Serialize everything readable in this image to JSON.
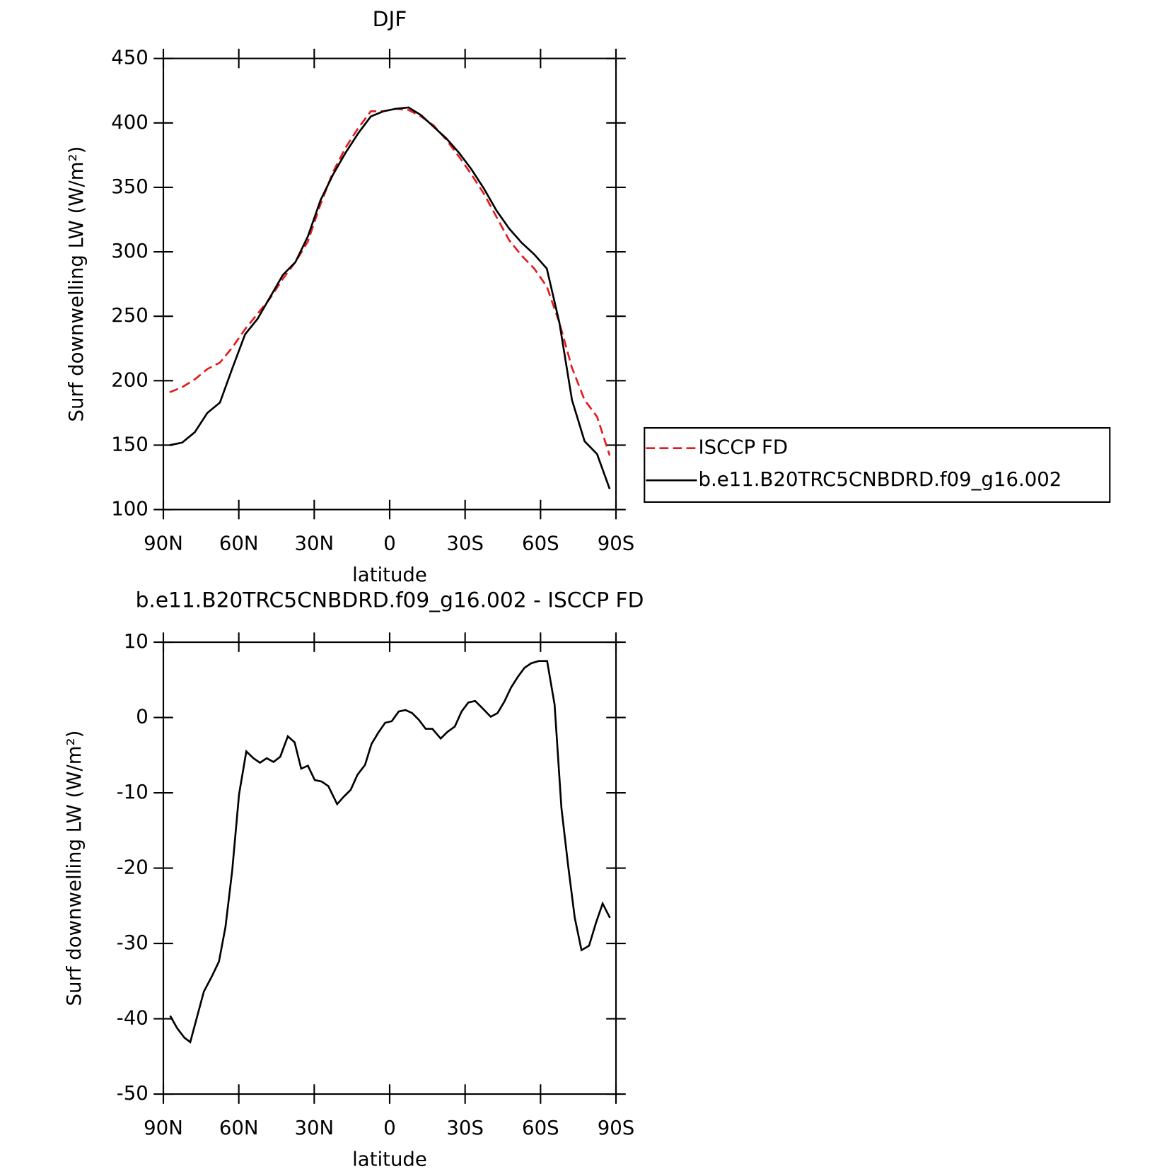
{
  "chart_data": [
    {
      "type": "line",
      "title": "DJF",
      "xlabel": "latitude",
      "ylabel": "Surf downwelling LW (W/m²)",
      "x": [
        87.5,
        82.5,
        77.5,
        72.5,
        67.5,
        62.5,
        57.5,
        52.5,
        47.5,
        42.5,
        37.5,
        32.5,
        27.5,
        22.5,
        17.5,
        12.5,
        7.5,
        2.5,
        -2.5,
        -7.5,
        -12.5,
        -17.5,
        -22.5,
        -27.5,
        -32.5,
        -37.5,
        -42.5,
        -47.5,
        -52.5,
        -57.5,
        -62.5,
        -67.5,
        -72.5,
        -77.5,
        -82.5,
        -87.5
      ],
      "series": [
        {
          "name": "ISCCP FD",
          "color": "#e41a1c",
          "linestyle": "dashed",
          "values": [
            191,
            195,
            201,
            209,
            214,
            226,
            240,
            252,
            264,
            279,
            292,
            308,
            337,
            362,
            381,
            396,
            409,
            409,
            411,
            410,
            405,
            398,
            387,
            374,
            360,
            345,
            327,
            309,
            297,
            287,
            273,
            245,
            210,
            185,
            172,
            142
          ]
        },
        {
          "name": "b.e11.B20TRC5CNBDRD.f09_g16.002",
          "color": "#000000",
          "linestyle": "solid",
          "values": [
            150,
            152,
            160,
            175,
            183,
            210,
            236,
            248,
            265,
            282,
            292,
            312,
            340,
            360,
            377,
            392,
            405,
            409,
            411,
            412,
            406,
            397,
            388,
            377,
            364,
            349,
            332,
            318,
            307,
            298,
            287,
            245,
            185,
            153,
            143,
            116
          ]
        }
      ],
      "xlim": [
        90,
        -90
      ],
      "xticks": [
        {
          "value": 90,
          "label": "90N"
        },
        {
          "value": 60,
          "label": "60N"
        },
        {
          "value": 30,
          "label": "30N"
        },
        0,
        {
          "value": -30,
          "label": "30S"
        },
        {
          "value": -60,
          "label": "60S"
        },
        {
          "value": -90,
          "label": "90S"
        }
      ],
      "ylim": [
        100,
        450
      ],
      "yticks": [
        100,
        150,
        200,
        250,
        300,
        350,
        400,
        450
      ],
      "legend": "outside-right"
    },
    {
      "type": "line",
      "title": "b.e11.B20TRC5CNBDRD.f09_g16.002 - ISCCP FD",
      "xlabel": "latitude",
      "ylabel": "Surf downwelling LW (W/m²)",
      "x": [
        87.3,
        84.6,
        81.7,
        79.3,
        73.9,
        70.6,
        67.9,
        65.3,
        62.6,
        59.9,
        57.0,
        54.2,
        51.6,
        48.9,
        46.2,
        43.5,
        40.5,
        37.8,
        35.2,
        32.5,
        29.8,
        27.1,
        24.4,
        20.9,
        18.2,
        15.5,
        12.8,
        9.8,
        7.2,
        4.5,
        1.8,
        -0.8,
        -3.6,
        -6.3,
        -8.9,
        -11.6,
        -14.3,
        -17.0,
        -20.3,
        -23.0,
        -25.9,
        -28.6,
        -31.3,
        -34.0,
        -36.7,
        -40.2,
        -42.9,
        -45.6,
        -48.3,
        -51.0,
        -53.6,
        -56.3,
        -59.3,
        -62.6,
        -65.6,
        -68.3,
        -71.0,
        -73.6,
        -76.3,
        -79.3,
        -82.0,
        -84.7,
        -87.6
      ],
      "series": [
        {
          "color": "#000000",
          "linestyle": "solid",
          "values": [
            -39.6,
            -41.2,
            -42.5,
            -43.1,
            -36.4,
            -34.3,
            -32.4,
            -27.8,
            -20.3,
            -10.2,
            -4.5,
            -5.4,
            -6.0,
            -5.4,
            -5.9,
            -5.2,
            -2.5,
            -3.3,
            -6.8,
            -6.4,
            -8.3,
            -8.5,
            -9.1,
            -11.5,
            -10.5,
            -9.6,
            -7.6,
            -6.3,
            -3.5,
            -2.0,
            -0.7,
            -0.5,
            0.8,
            1.0,
            0.6,
            -0.3,
            -1.5,
            -1.5,
            -2.8,
            -1.9,
            -1.2,
            0.8,
            2.0,
            2.2,
            1.3,
            0.1,
            0.6,
            2.1,
            4.0,
            5.4,
            6.6,
            7.2,
            7.5,
            7.5,
            1.7,
            -12.0,
            -19.7,
            -26.6,
            -30.9,
            -30.3,
            -27.3,
            -24.7,
            -26.6
          ]
        }
      ],
      "xlim": [
        90,
        -90
      ],
      "xticks": [
        {
          "value": 90,
          "label": "90N"
        },
        {
          "value": 60,
          "label": "60N"
        },
        {
          "value": 30,
          "label": "30N"
        },
        0,
        {
          "value": -30,
          "label": "30S"
        },
        {
          "value": -60,
          "label": "60S"
        },
        {
          "value": -90,
          "label": "90S"
        }
      ],
      "ylim": [
        -50,
        10
      ],
      "yticks": [
        -50,
        -40,
        -30,
        -20,
        -10,
        0,
        10
      ]
    }
  ]
}
